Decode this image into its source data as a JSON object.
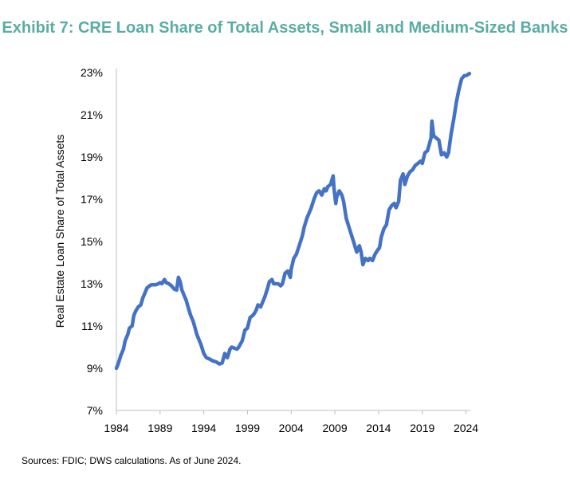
{
  "chart_data": {
    "type": "line",
    "title": "Exhibit 7: CRE Loan Share of Total Assets, Small and Medium-Sized Banks",
    "xlabel": "",
    "ylabel": "Real Estate Loan Share of Total Assets",
    "ylim": [
      7,
      23
    ],
    "xlim": [
      1984,
      2024.5
    ],
    "yticks": [
      7,
      9,
      11,
      13,
      15,
      17,
      19,
      21,
      23
    ],
    "ytick_labels": [
      "7%",
      "9%",
      "11%",
      "13%",
      "15%",
      "17%",
      "19%",
      "21%",
      "23%"
    ],
    "xticks": [
      1984,
      1989,
      1994,
      1999,
      2004,
      2009,
      2014,
      2019,
      2024
    ],
    "xtick_labels": [
      "1984",
      "1989",
      "1994",
      "1999",
      "2004",
      "2009",
      "2014",
      "2019",
      "2024"
    ],
    "grid": false,
    "legend": "none",
    "line_color": "#4472C4",
    "series": [
      {
        "x": [
          1984.0,
          1984.2,
          1984.5,
          1984.8,
          1985.0,
          1985.3,
          1985.5,
          1985.8,
          1986.0,
          1986.2,
          1986.5,
          1986.8,
          1987.0,
          1987.2,
          1987.5,
          1987.8,
          1988.0,
          1988.2,
          1988.5,
          1988.8,
          1989.0,
          1989.2,
          1989.5,
          1989.7,
          1990.0,
          1990.3,
          1990.6,
          1990.9,
          1991.1,
          1991.3,
          1991.5,
          1991.8,
          1992.0,
          1992.2,
          1992.5,
          1992.8,
          1993.0,
          1993.2,
          1993.5,
          1993.7,
          1994.0,
          1994.3,
          1994.6,
          1995.0,
          1995.4,
          1995.8,
          1996.1,
          1996.4,
          1996.7,
          1997.0,
          1997.2,
          1997.5,
          1997.8,
          1998.0,
          1998.4,
          1998.7,
          1999.0,
          1999.3,
          1999.6,
          1999.8,
          2000.0,
          2000.2,
          2000.5,
          2000.8,
          2001.0,
          2001.3,
          2001.5,
          2001.8,
          2002.0,
          2002.3,
          2002.5,
          2002.8,
          2003.0,
          2003.3,
          2003.6,
          2003.9,
          2004.0,
          2004.3,
          2004.6,
          2005.0,
          2005.3,
          2005.5,
          2005.8,
          2006.0,
          2006.3,
          2006.6,
          2006.9,
          2007.2,
          2007.5,
          2007.8,
          2008.0,
          2008.2,
          2008.5,
          2008.8,
          2008.9,
          2009.1,
          2009.2,
          2009.5,
          2009.8,
          2010.0,
          2010.3,
          2010.6,
          2010.9,
          2011.2,
          2011.5,
          2011.8,
          2012.0,
          2012.2,
          2012.5,
          2012.8,
          2013.0,
          2013.3,
          2013.6,
          2013.9,
          2014.1,
          2014.3,
          2014.6,
          2014.9,
          2015.2,
          2015.5,
          2015.8,
          2016.0,
          2016.3,
          2016.5,
          2016.8,
          2017.0,
          2017.3,
          2017.6,
          2017.9,
          2018.2,
          2018.5,
          2018.8,
          2019.0,
          2019.3,
          2019.6,
          2019.8,
          2020.0,
          2020.1,
          2020.3,
          2020.6,
          2020.9,
          2021.2,
          2021.5,
          2021.8,
          2022.0,
          2022.3,
          2022.6,
          2022.9,
          2023.2,
          2023.5,
          2023.8,
          2024.0,
          2024.2,
          2024.4
        ],
        "values": [
          9.0,
          9.2,
          9.6,
          9.9,
          10.3,
          10.6,
          10.9,
          11.0,
          11.5,
          11.7,
          11.9,
          12.0,
          12.3,
          12.5,
          12.8,
          12.9,
          12.95,
          12.95,
          12.95,
          13.0,
          13.05,
          13.0,
          13.2,
          13.05,
          13.0,
          12.9,
          12.75,
          12.7,
          13.3,
          13.1,
          12.7,
          12.4,
          12.2,
          11.9,
          11.5,
          11.2,
          10.9,
          10.6,
          10.3,
          10.1,
          9.7,
          9.5,
          9.45,
          9.35,
          9.3,
          9.2,
          9.25,
          9.7,
          9.5,
          9.9,
          10.0,
          9.95,
          9.9,
          10.0,
          10.3,
          10.8,
          10.9,
          11.4,
          11.5,
          11.6,
          11.75,
          12.0,
          11.9,
          12.2,
          12.4,
          12.8,
          13.1,
          13.2,
          13.0,
          13.0,
          13.0,
          12.9,
          13.0,
          13.5,
          13.6,
          13.3,
          13.7,
          14.2,
          14.4,
          14.9,
          15.3,
          15.7,
          16.1,
          16.3,
          16.6,
          17.0,
          17.3,
          17.4,
          17.2,
          17.5,
          17.4,
          17.6,
          17.7,
          18.1,
          17.5,
          16.8,
          17.1,
          17.4,
          17.2,
          16.9,
          16.1,
          15.7,
          15.3,
          14.9,
          14.5,
          14.8,
          14.5,
          13.9,
          14.2,
          14.1,
          14.2,
          14.1,
          14.4,
          14.6,
          14.7,
          15.2,
          15.6,
          15.8,
          16.5,
          16.7,
          16.8,
          16.6,
          16.9,
          17.9,
          18.2,
          17.7,
          18.1,
          18.3,
          18.4,
          18.6,
          18.7,
          18.8,
          18.7,
          19.2,
          19.3,
          19.6,
          19.9,
          20.7,
          20.0,
          19.9,
          19.8,
          19.1,
          19.2,
          19.0,
          19.2,
          20.1,
          20.8,
          21.6,
          22.2,
          22.7,
          22.85,
          22.85,
          22.9,
          22.95
        ]
      }
    ]
  },
  "source_note": "Sources: FDIC; DWS calculations. As of June 2024."
}
